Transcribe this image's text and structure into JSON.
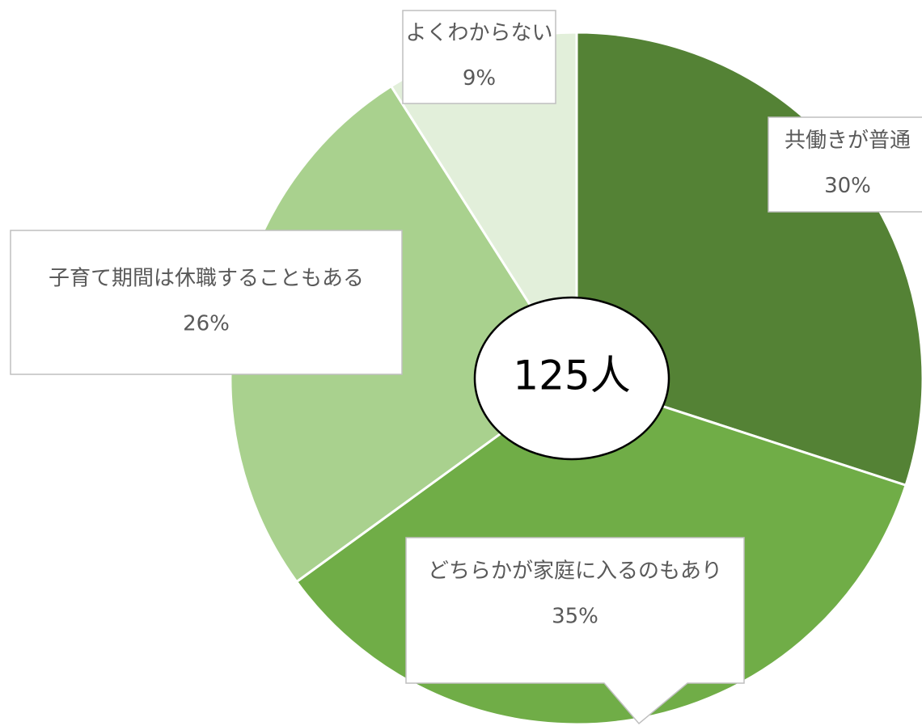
{
  "chart_data": {
    "type": "pie",
    "categories": [
      "共働きが普通",
      "どちらかが家庭に入るのもあり",
      "子育て期間は休職することもある",
      "よくわからない"
    ],
    "values": [
      30,
      35,
      26,
      9
    ],
    "value_labels": [
      "30%",
      "35%",
      "26%",
      "9%"
    ],
    "colors": [
      "#548235",
      "#70ad47",
      "#a9d18e",
      "#e2efda"
    ],
    "center_label": "125人"
  }
}
